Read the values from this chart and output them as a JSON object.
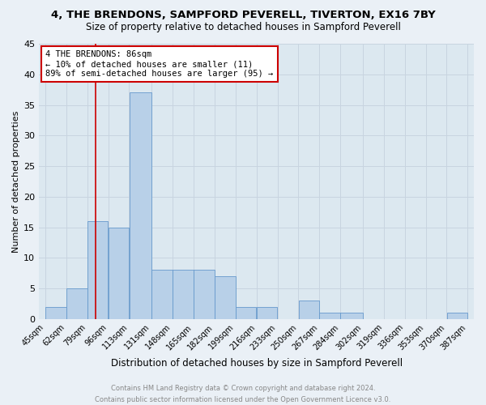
{
  "title": "4, THE BRENDONS, SAMPFORD PEVERELL, TIVERTON, EX16 7BY",
  "subtitle": "Size of property relative to detached houses in Sampford Peverell",
  "xlabel": "Distribution of detached houses by size in Sampford Peverell",
  "ylabel": "Number of detached properties",
  "footer_line1": "Contains HM Land Registry data © Crown copyright and database right 2024.",
  "footer_line2": "Contains public sector information licensed under the Open Government Licence v3.0.",
  "bar_edges": [
    45,
    62,
    79,
    96,
    113,
    131,
    148,
    165,
    182,
    199,
    216,
    233,
    250,
    267,
    284,
    302,
    319,
    336,
    353,
    370,
    387
  ],
  "bar_heights": [
    2,
    5,
    16,
    15,
    37,
    8,
    8,
    8,
    7,
    2,
    2,
    0,
    3,
    1,
    1,
    0,
    0,
    0,
    0,
    1
  ],
  "bar_color": "#b8d0e8",
  "bar_edgecolor": "#6699cc",
  "bar_linewidth": 0.6,
  "vline_x": 86,
  "vline_color": "#cc0000",
  "vline_linewidth": 1.2,
  "annotation_text": "4 THE BRENDONS: 86sqm\n← 10% of detached houses are smaller (11)\n89% of semi-detached houses are larger (95) →",
  "annotation_box_color": "#cc0000",
  "annotation_bg": "#ffffff",
  "ylim": [
    0,
    45
  ],
  "yticks": [
    0,
    5,
    10,
    15,
    20,
    25,
    30,
    35,
    40,
    45
  ],
  "grid_color": "#c8d4e0",
  "bg_color": "#dce8f0",
  "fig_bg_color": "#eaf0f6",
  "title_fontsize": 9.5,
  "subtitle_fontsize": 8.5,
  "xlabel_fontsize": 8.5,
  "ylabel_fontsize": 8,
  "footer_fontsize": 6,
  "tick_fontsize": 7,
  "ytick_fontsize": 8,
  "ann_fontsize": 7.5
}
